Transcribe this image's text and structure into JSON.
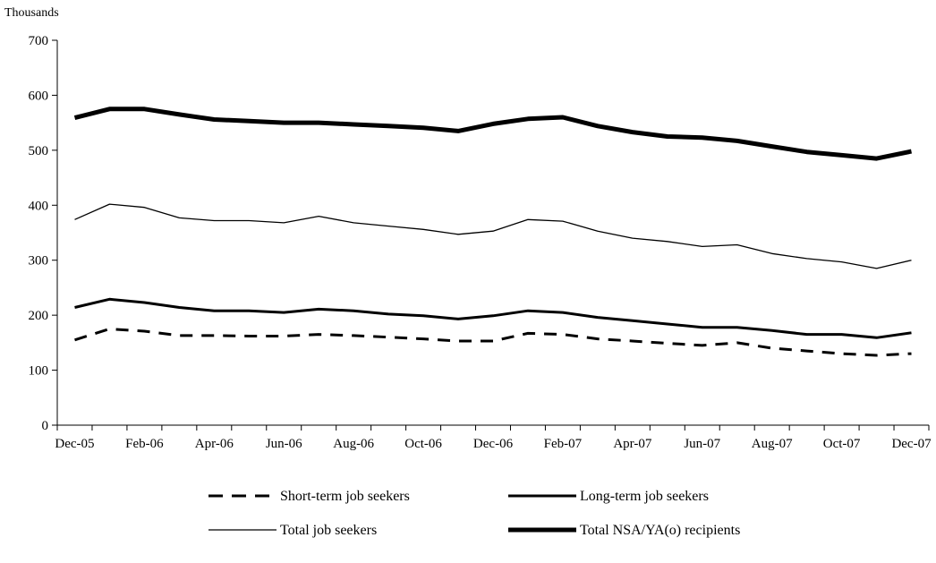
{
  "chart_data": {
    "type": "line",
    "ylabel": "Thousands",
    "ylim": [
      0,
      700
    ],
    "yticks": [
      0,
      100,
      200,
      300,
      400,
      500,
      600,
      700
    ],
    "x": [
      "Dec-05",
      "Jan-06",
      "Feb-06",
      "Mar-06",
      "Apr-06",
      "May-06",
      "Jun-06",
      "Jul-06",
      "Aug-06",
      "Sep-06",
      "Oct-06",
      "Nov-06",
      "Dec-06",
      "Jan-07",
      "Feb-07",
      "Mar-07",
      "Apr-07",
      "May-07",
      "Jun-07",
      "Jul-07",
      "Aug-07",
      "Sep-07",
      "Oct-07",
      "Nov-07",
      "Dec-07"
    ],
    "xticks": [
      "Dec-05",
      "Feb-06",
      "Apr-06",
      "Jun-06",
      "Aug-06",
      "Oct-06",
      "Dec-06",
      "Feb-07",
      "Apr-07",
      "Jun-07",
      "Aug-07",
      "Oct-07",
      "Dec-07"
    ],
    "grid": false,
    "legend_position": "bottom",
    "series": [
      {
        "name": "Short-term job seekers",
        "style": "dashed",
        "color": "#000000",
        "values": [
          155,
          175,
          171,
          163,
          163,
          162,
          162,
          165,
          163,
          160,
          157,
          153,
          153,
          167,
          165,
          157,
          153,
          149,
          145,
          150,
          140,
          135,
          130,
          127,
          130
        ]
      },
      {
        "name": "Long-term job seekers",
        "style": "solid-medium",
        "color": "#000000",
        "values": [
          214,
          229,
          223,
          214,
          208,
          208,
          205,
          211,
          208,
          202,
          199,
          193,
          199,
          208,
          205,
          196,
          190,
          184,
          178,
          178,
          172,
          165,
          165,
          159,
          168
        ]
      },
      {
        "name": "Total job seekers",
        "style": "solid-thin",
        "color": "#000000",
        "values": [
          374,
          402,
          396,
          377,
          372,
          372,
          368,
          380,
          368,
          362,
          356,
          347,
          353,
          374,
          371,
          353,
          340,
          334,
          325,
          328,
          312,
          303,
          297,
          285,
          300
        ]
      },
      {
        "name": "Total NSA/YA(o) recipients",
        "style": "solid-thick",
        "color": "#000000",
        "values": [
          559,
          575,
          575,
          565,
          556,
          553,
          550,
          550,
          547,
          544,
          541,
          535,
          548,
          557,
          560,
          544,
          533,
          525,
          523,
          517,
          507,
          497,
          491,
          485,
          498
        ]
      }
    ]
  }
}
